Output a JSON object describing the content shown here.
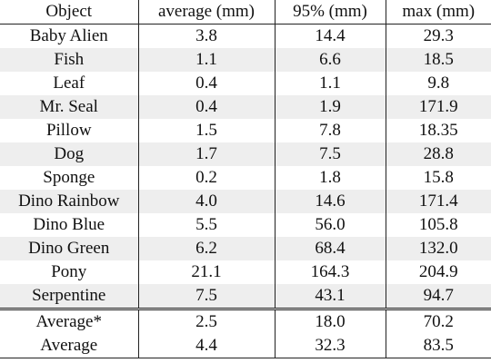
{
  "table": {
    "headers": [
      "Object",
      "average (mm)",
      "95% (mm)",
      "max (mm)"
    ],
    "rows": [
      [
        "Baby Alien",
        "3.8",
        "14.4",
        "29.3"
      ],
      [
        "Fish",
        "1.1",
        "6.6",
        "18.5"
      ],
      [
        "Leaf",
        "0.4",
        "1.1",
        "9.8"
      ],
      [
        "Mr. Seal",
        "0.4",
        "1.9",
        "171.9"
      ],
      [
        "Pillow",
        "1.5",
        "7.8",
        "18.35"
      ],
      [
        "Dog",
        "1.7",
        "7.5",
        "28.8"
      ],
      [
        "Sponge",
        "0.2",
        "1.8",
        "15.8"
      ],
      [
        "Dino Rainbow",
        "4.0",
        "14.6",
        "171.4"
      ],
      [
        "Dino Blue",
        "5.5",
        "56.0",
        "105.8"
      ],
      [
        "Dino Green",
        "6.2",
        "68.4",
        "132.0"
      ],
      [
        "Pony",
        "21.1",
        "164.3",
        "204.9"
      ],
      [
        "Serpentine",
        "7.5",
        "43.1",
        "94.7"
      ]
    ],
    "summary": [
      [
        "Average*",
        "2.5",
        "18.0",
        "70.2"
      ],
      [
        "Average",
        "4.4",
        "32.3",
        "83.5"
      ]
    ]
  }
}
